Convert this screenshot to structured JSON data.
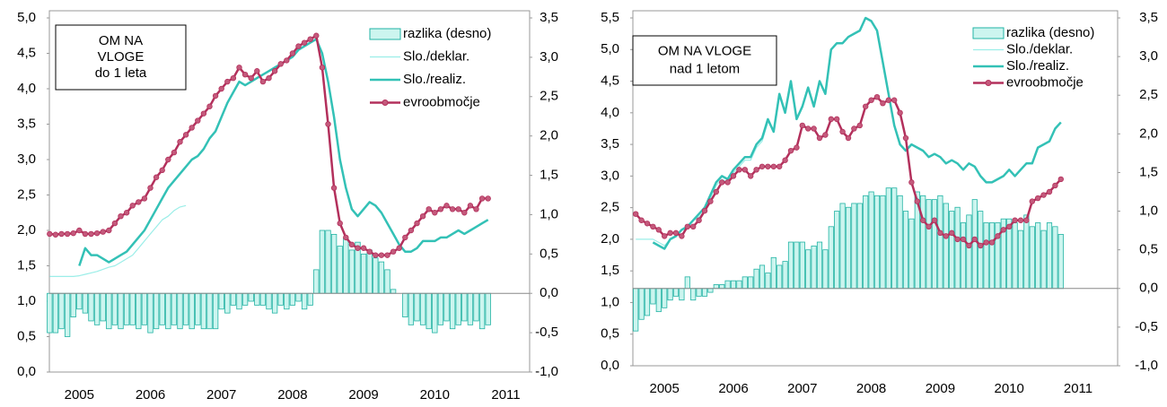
{
  "chart_data": [
    {
      "type": "combo",
      "title": [
        "OM NA",
        "VLOGE",
        "do 1 leta"
      ],
      "categories": [
        null,
        null,
        null,
        null,
        null,
        "2005",
        null,
        null,
        null,
        null,
        null,
        null,
        null,
        null,
        null,
        null,
        null,
        "2006",
        null,
        null,
        null,
        null,
        null,
        null,
        null,
        null,
        null,
        null,
        null,
        "2007",
        null,
        null,
        null,
        null,
        null,
        null,
        null,
        null,
        null,
        null,
        null,
        "2008",
        null,
        null,
        null,
        null,
        null,
        null,
        null,
        null,
        null,
        null,
        null,
        "2009",
        null,
        null,
        null,
        null,
        null,
        null,
        null,
        null,
        null,
        null,
        null,
        "2010",
        null,
        null,
        null,
        null,
        null,
        null,
        null,
        null,
        null,
        null,
        null,
        "2011"
      ],
      "ylim": [
        0,
        5
      ],
      "yticks": [
        {
          "value": 0,
          "label": "0,0"
        },
        {
          "value": 0.5,
          "label": "0,5"
        },
        {
          "value": 1,
          "label": "1,0"
        },
        {
          "value": 1.5,
          "label": "1,5"
        },
        {
          "value": 2,
          "label": "2,0"
        },
        {
          "value": 2.5,
          "label": "2,5"
        },
        {
          "value": 3,
          "label": "3,0"
        },
        {
          "value": 3.5,
          "label": "3,5"
        },
        {
          "value": 4,
          "label": "4,0"
        },
        {
          "value": 4.5,
          "label": "4,5"
        },
        {
          "value": 5,
          "label": "5,0"
        }
      ],
      "y2lim": [
        -1,
        3.5
      ],
      "y2ticks": [
        {
          "value": -1,
          "label": "-1,0"
        },
        {
          "value": -0.5,
          "label": "-0,5"
        },
        {
          "value": 0,
          "label": "0,0"
        },
        {
          "value": 0.5,
          "label": "0,5"
        },
        {
          "value": 1,
          "label": "1,0"
        },
        {
          "value": 1.5,
          "label": "1,5"
        },
        {
          "value": 2,
          "label": "2,0"
        },
        {
          "value": 2.5,
          "label": "2,5"
        },
        {
          "value": 3,
          "label": "3,0"
        },
        {
          "value": 3.5,
          "label": "3,5"
        }
      ],
      "legend": "upper right",
      "series": [
        {
          "name": "razlika (desno)",
          "type": "bar",
          "axis": "y2",
          "color": "#ccf5ef",
          "edge": "#22b3a4",
          "values": [
            -0.5,
            -0.5,
            -0.45,
            -0.55,
            -0.3,
            -0.2,
            -0.25,
            -0.35,
            -0.4,
            -0.35,
            -0.45,
            -0.4,
            -0.45,
            -0.4,
            -0.4,
            -0.45,
            -0.4,
            -0.5,
            -0.45,
            -0.4,
            -0.45,
            -0.4,
            -0.45,
            -0.4,
            -0.45,
            -0.4,
            -0.45,
            -0.45,
            -0.45,
            -0.2,
            -0.25,
            -0.15,
            -0.2,
            -0.15,
            -0.1,
            -0.15,
            -0.15,
            -0.2,
            -0.25,
            -0.15,
            -0.2,
            -0.15,
            -0.1,
            -0.2,
            -0.15,
            0.3,
            0.8,
            0.8,
            0.75,
            0.6,
            0.7,
            0.55,
            0.65,
            0.5,
            0.55,
            0.45,
            0.4,
            0.3,
            0.05,
            0,
            -0.3,
            -0.4,
            -0.35,
            -0.4,
            -0.45,
            -0.5,
            -0.4,
            -0.35,
            -0.45,
            -0.4,
            -0.35,
            -0.4,
            -0.35,
            -0.45,
            -0.4,
            null,
            null,
            null
          ]
        },
        {
          "name": "Slo./deklar.",
          "type": "line",
          "color": "#9beee8",
          "line_width": 1.2,
          "values": [
            1.35,
            1.35,
            1.35,
            1.35,
            1.35,
            1.36,
            1.38,
            1.4,
            1.42,
            1.45,
            1.48,
            1.5,
            1.55,
            1.6,
            1.65,
            1.75,
            1.85,
            1.95,
            2.05,
            2.15,
            2.2,
            2.28,
            2.33,
            2.35,
            null,
            null,
            null,
            null,
            null,
            null,
            null,
            null,
            null,
            null,
            null,
            null,
            null,
            null,
            null,
            null,
            null,
            null,
            null,
            null,
            null,
            null,
            null,
            null,
            null,
            null,
            null,
            null,
            null,
            null,
            null,
            null,
            null,
            null,
            null,
            null,
            null,
            null,
            null,
            null,
            null,
            null,
            null,
            null,
            null,
            null,
            null,
            null,
            null,
            null,
            null,
            null,
            null,
            null
          ]
        },
        {
          "name": "Slo./realiz.",
          "type": "line",
          "color": "#33c1b6",
          "line_width": 2.5,
          "values": [
            null,
            null,
            null,
            null,
            null,
            1.5,
            1.75,
            1.65,
            1.65,
            1.6,
            1.55,
            1.6,
            1.65,
            1.7,
            1.8,
            1.9,
            2.0,
            2.15,
            2.3,
            2.45,
            2.6,
            2.7,
            2.8,
            2.9,
            3.0,
            3.05,
            3.15,
            3.3,
            3.4,
            3.6,
            3.8,
            3.95,
            4.1,
            4.05,
            4.1,
            4.15,
            4.2,
            4.25,
            4.3,
            4.35,
            4.4,
            4.45,
            4.55,
            4.6,
            4.65,
            4.7,
            4.5,
            4.1,
            3.6,
            3.0,
            2.6,
            2.3,
            2.2,
            2.3,
            2.4,
            2.35,
            2.25,
            2.1,
            1.95,
            1.8,
            1.7,
            1.7,
            1.75,
            1.85,
            1.85,
            1.85,
            1.9,
            1.9,
            1.95,
            2.0,
            1.95,
            2.0,
            2.05,
            2.1,
            2.15,
            null,
            null,
            null
          ]
        },
        {
          "name": "evroobmočje",
          "type": "line",
          "color": "#b3305c",
          "line_width": 2.5,
          "marker": "circle",
          "values": [
            1.95,
            1.94,
            1.95,
            1.95,
            1.96,
            2.0,
            1.95,
            1.95,
            1.96,
            1.98,
            2.0,
            2.1,
            2.2,
            2.25,
            2.35,
            2.4,
            2.45,
            2.6,
            2.75,
            2.85,
            3.0,
            3.1,
            3.25,
            3.35,
            3.45,
            3.55,
            3.65,
            3.75,
            3.9,
            4.0,
            4.1,
            4.15,
            4.3,
            4.2,
            4.15,
            4.25,
            4.1,
            4.15,
            4.25,
            4.35,
            4.4,
            4.5,
            4.6,
            4.65,
            4.7,
            4.75,
            4.3,
            3.5,
            2.6,
            2.1,
            1.9,
            1.8,
            1.75,
            1.75,
            1.7,
            1.65,
            1.65,
            1.65,
            1.7,
            1.75,
            1.9,
            2.0,
            2.1,
            2.2,
            2.3,
            2.25,
            2.3,
            2.35,
            2.3,
            2.3,
            2.25,
            2.35,
            2.3,
            2.45,
            2.45,
            null,
            null,
            null
          ]
        }
      ]
    },
    {
      "type": "combo",
      "title": [
        "OM NA VLOGE",
        "nad 1 letom"
      ],
      "categories": [
        null,
        null,
        null,
        null,
        null,
        "2005",
        null,
        null,
        null,
        null,
        null,
        null,
        null,
        null,
        null,
        null,
        null,
        "2006",
        null,
        null,
        null,
        null,
        null,
        null,
        null,
        null,
        null,
        null,
        null,
        "2007",
        null,
        null,
        null,
        null,
        null,
        null,
        null,
        null,
        null,
        null,
        null,
        "2008",
        null,
        null,
        null,
        null,
        null,
        null,
        null,
        null,
        null,
        null,
        null,
        "2009",
        null,
        null,
        null,
        null,
        null,
        null,
        null,
        null,
        null,
        null,
        null,
        "2010",
        null,
        null,
        null,
        null,
        null,
        null,
        null,
        null,
        null,
        null,
        null,
        "2011"
      ],
      "ylim": [
        0,
        5.5
      ],
      "yticks": [
        {
          "value": 0,
          "label": "0,0"
        },
        {
          "value": 0.5,
          "label": "0,5"
        },
        {
          "value": 1,
          "label": "1,0"
        },
        {
          "value": 1.5,
          "label": "1,5"
        },
        {
          "value": 2,
          "label": "2,0"
        },
        {
          "value": 2.5,
          "label": "2,5"
        },
        {
          "value": 3,
          "label": "3,0"
        },
        {
          "value": 3.5,
          "label": "3,5"
        },
        {
          "value": 4,
          "label": "4,0"
        },
        {
          "value": 4.5,
          "label": "4,5"
        },
        {
          "value": 5,
          "label": "5,0"
        },
        {
          "value": 5.5,
          "label": "5,5"
        }
      ],
      "y2lim": [
        -1,
        3.5
      ],
      "y2ticks": [
        {
          "value": -1,
          "label": "-1,0"
        },
        {
          "value": -0.5,
          "label": "-0,5"
        },
        {
          "value": 0,
          "label": "0,0"
        },
        {
          "value": 0.5,
          "label": "0,5"
        },
        {
          "value": 1,
          "label": "1,0"
        },
        {
          "value": 1.5,
          "label": "1,5"
        },
        {
          "value": 2,
          "label": "2,0"
        },
        {
          "value": 2.5,
          "label": "2,5"
        },
        {
          "value": 3,
          "label": "3,0"
        },
        {
          "value": 3.5,
          "label": "3,5"
        }
      ],
      "legend": "upper right",
      "series": [
        {
          "name": "razlika (desno)",
          "type": "bar",
          "axis": "y2",
          "color": "#ccf5ef",
          "edge": "#22b3a4",
          "values": [
            -0.55,
            -0.4,
            -0.35,
            -0.2,
            -0.3,
            -0.25,
            -0.15,
            -0.1,
            -0.15,
            0.15,
            -0.15,
            -0.1,
            -0.1,
            -0.05,
            0.05,
            0.05,
            0.1,
            0.1,
            0.1,
            0.15,
            0.15,
            0.25,
            0.3,
            0.2,
            0.4,
            0.3,
            0.35,
            0.6,
            0.6,
            0.6,
            0.5,
            0.55,
            0.6,
            0.5,
            0.8,
            1.0,
            1.1,
            1.05,
            1.1,
            1.1,
            1.2,
            1.25,
            1.2,
            1.2,
            1.3,
            1.3,
            1.2,
            1.0,
            0.9,
            1.25,
            1.2,
            1.15,
            1.15,
            1.2,
            1.1,
            1.0,
            1.05,
            0.85,
            0.95,
            1.15,
            1.0,
            0.85,
            0.85,
            0.85,
            0.9,
            0.9,
            0.85,
            0.75,
            0.95,
            0.8,
            0.85,
            0.75,
            0.85,
            0.8,
            0.7,
            null,
            null,
            null
          ]
        },
        {
          "name": "Slo./deklar.",
          "type": "line",
          "color": "#9beee8",
          "line_width": 1.2,
          "values": [
            2.0,
            2.0,
            2.0,
            2.0,
            1.95,
            1.9,
            2.0,
            2.05,
            2.15,
            2.2,
            2.3,
            2.35,
            2.45,
            2.65,
            2.85,
            2.95,
            2.9,
            3.05,
            3.15,
            3.25,
            3.25,
            3.45,
            3.55,
            3.85,
            null,
            null,
            null,
            null,
            null,
            null,
            null,
            null,
            null,
            null,
            null,
            null,
            null,
            null,
            null,
            null,
            null,
            null,
            null,
            null,
            null,
            null,
            null,
            null,
            null,
            null,
            null,
            null,
            null,
            null,
            null,
            null,
            null,
            null,
            null,
            null,
            null,
            null,
            null,
            null,
            null,
            null,
            null,
            null,
            null,
            null,
            null,
            null,
            null,
            null,
            null,
            null,
            null,
            null
          ]
        },
        {
          "name": "Slo./realiz.",
          "type": "line",
          "color": "#33c1b6",
          "line_width": 2.5,
          "values": [
            null,
            null,
            null,
            1.95,
            1.9,
            1.85,
            2.0,
            2.05,
            2.15,
            2.2,
            2.3,
            2.4,
            2.5,
            2.7,
            2.9,
            3.0,
            2.95,
            3.1,
            3.2,
            3.3,
            3.3,
            3.5,
            3.6,
            3.9,
            3.7,
            4.3,
            4.0,
            4.5,
            3.9,
            4.1,
            4.4,
            4.1,
            4.5,
            4.3,
            5.0,
            5.1,
            5.1,
            5.2,
            5.25,
            5.3,
            5.5,
            5.45,
            5.3,
            4.8,
            4.3,
            3.8,
            3.5,
            3.4,
            3.5,
            3.45,
            3.4,
            3.3,
            3.35,
            3.3,
            3.2,
            3.25,
            3.2,
            3.1,
            3.2,
            3.15,
            3.0,
            2.9,
            2.9,
            2.95,
            3.0,
            3.1,
            3.0,
            3.1,
            3.2,
            3.2,
            3.45,
            3.5,
            3.55,
            3.75,
            3.85,
            null,
            null,
            null
          ]
        },
        {
          "name": "evroobmočje",
          "type": "line",
          "color": "#b3305c",
          "line_width": 2.5,
          "marker": "circle",
          "values": [
            2.4,
            2.3,
            2.25,
            2.2,
            2.15,
            2.05,
            2.1,
            2.1,
            2.05,
            2.2,
            2.2,
            2.3,
            2.45,
            2.6,
            2.75,
            2.9,
            2.9,
            3.0,
            3.1,
            3.1,
            3.0,
            3.1,
            3.15,
            3.15,
            3.15,
            3.15,
            3.25,
            3.4,
            3.45,
            3.8,
            3.75,
            3.75,
            3.6,
            3.65,
            3.9,
            3.9,
            3.7,
            3.6,
            3.75,
            3.8,
            4.1,
            4.2,
            4.25,
            4.15,
            4.2,
            4.2,
            4.0,
            3.6,
            2.9,
            2.6,
            2.3,
            2.2,
            2.3,
            2.1,
            2.05,
            2.1,
            2.0,
            2.0,
            1.9,
            2.0,
            1.9,
            1.95,
            1.95,
            2.05,
            2.15,
            2.2,
            2.3,
            2.3,
            2.3,
            2.6,
            2.65,
            2.7,
            2.75,
            2.85,
            2.95,
            null,
            null,
            null
          ]
        }
      ]
    }
  ]
}
